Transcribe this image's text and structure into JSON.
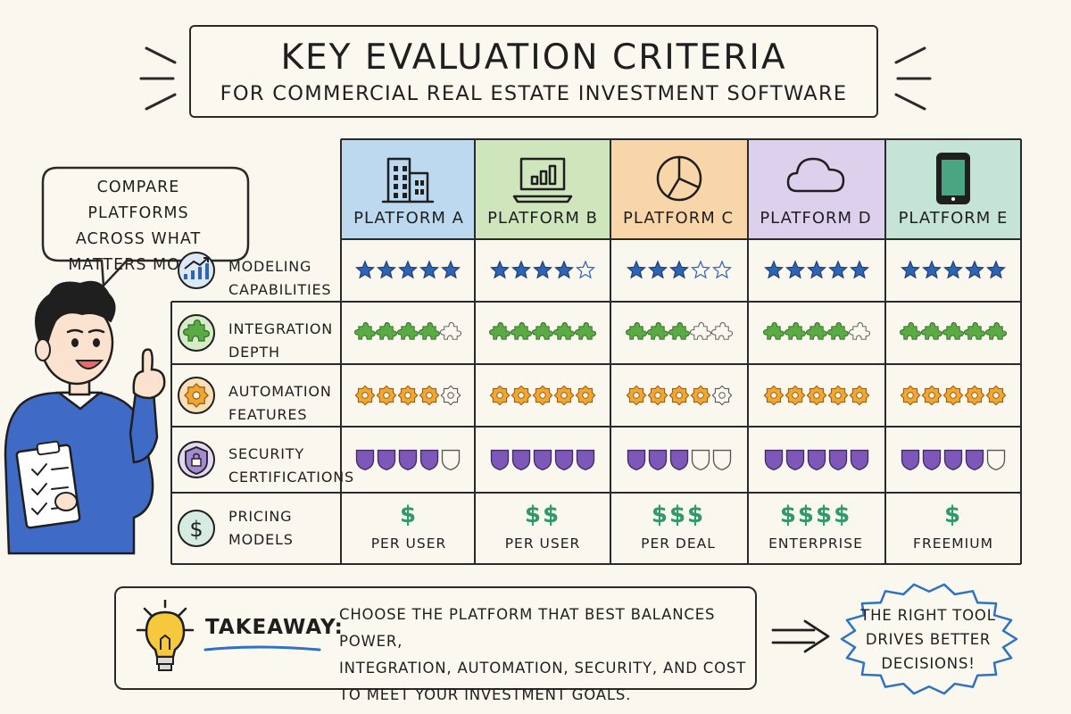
{
  "header": {
    "title": "KEY EVALUATION CRITERIA",
    "subtitle": "FOR COMMERCIAL REAL ESTATE INVESTMENT SOFTWARE"
  },
  "bubble": {
    "text_lines": [
      "COMPARE PLATFORMS",
      "ACROSS WHAT",
      "MATTERS MOST!"
    ]
  },
  "platforms": [
    {
      "label": "PLATFORM A",
      "icon": "building-icon",
      "color": "#bcd9f0"
    },
    {
      "label": "PLATFORM B",
      "icon": "laptop-chart-icon",
      "color": "#cfe6bd"
    },
    {
      "label": "PLATFORM C",
      "icon": "pie-chart-icon",
      "color": "#f9d6a9"
    },
    {
      "label": "PLATFORM D",
      "icon": "cloud-icon",
      "color": "#dcd0ec"
    },
    {
      "label": "PLATFORM E",
      "icon": "tablet-icon",
      "color": "#c6e3d8"
    }
  ],
  "criteria": [
    {
      "lines": [
        "MODELING",
        "CAPABILITIES"
      ],
      "icon": "growth-chart-icon",
      "rating_icon": "star-icon",
      "color": "#2f64b3",
      "ratings": [
        5,
        4,
        3,
        5,
        5
      ]
    },
    {
      "lines": [
        "INTEGRATION",
        "DEPTH"
      ],
      "icon": "puzzle-icon",
      "rating_icon": "puzzle-piece-icon",
      "color": "#5bab45",
      "ratings": [
        4,
        5,
        3,
        4,
        5
      ]
    },
    {
      "lines": [
        "AUTOMATION",
        "FEATURES"
      ],
      "icon": "gear-icon",
      "rating_icon": "gear-icon",
      "color": "#f0a630",
      "ratings": [
        4,
        5,
        4,
        5,
        5
      ]
    },
    {
      "lines": [
        "SECURITY",
        "CERTIFICATIONS"
      ],
      "icon": "lock-shield-icon",
      "rating_icon": "shield-icon",
      "color": "#7e58b8",
      "ratings": [
        4,
        5,
        3,
        5,
        4
      ]
    },
    {
      "lines": [
        "PRICING",
        "MODELS"
      ],
      "icon": "dollar-icon",
      "rating_icon": "dollar-sign",
      "color": "#2f9a68",
      "ratings": []
    }
  ],
  "pricing": [
    {
      "symbols": "$",
      "model": "PER USER"
    },
    {
      "symbols": "$$",
      "model": "PER USER"
    },
    {
      "symbols": "$$$",
      "model": "PER DEAL"
    },
    {
      "symbols": "$$$$",
      "model": "ENTERPRISE"
    },
    {
      "symbols": "$",
      "model": "FREEMIUM"
    }
  ],
  "takeaway": {
    "title": "TAKEAWAY:",
    "text_lines": [
      "CHOOSE THE PLATFORM THAT BEST BALANCES POWER,",
      "INTEGRATION, AUTOMATION, SECURITY, AND COST",
      "TO MEET YOUR INVESTMENT GOALS."
    ]
  },
  "callout": {
    "text_lines": [
      "THE RIGHT TOOL",
      "DRIVES BETTER",
      "DECISIONS!"
    ]
  }
}
